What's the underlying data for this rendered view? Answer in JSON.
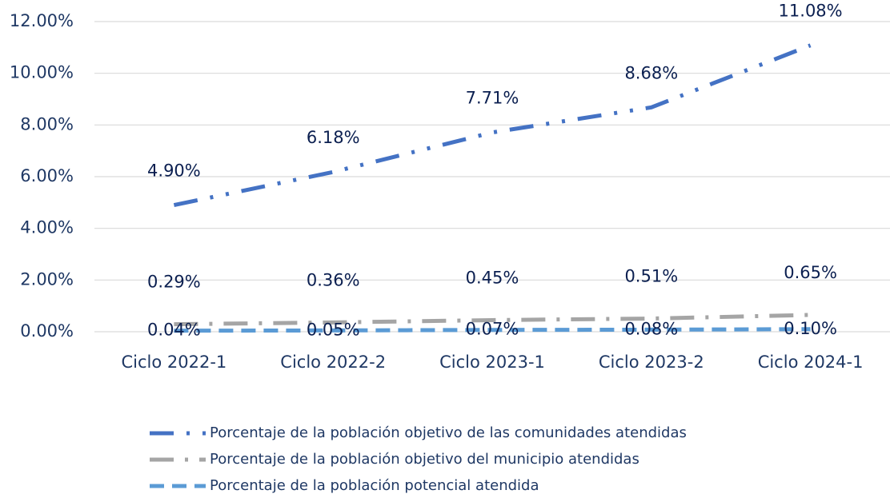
{
  "chart_data": {
    "type": "line",
    "categories": [
      "Ciclo 2022-1",
      "Ciclo 2022-2",
      "Ciclo 2023-1",
      "Ciclo 2023-2",
      "Ciclo 2024-1"
    ],
    "series": [
      {
        "name": "Porcentaje de la población objetivo de las comunidades atendidas",
        "color": "#4472c4",
        "dash": "dash-dot-dot",
        "values": [
          4.9,
          6.18,
          7.71,
          8.68,
          11.08
        ],
        "value_labels": [
          "4.90%",
          "6.18%",
          "7.71%",
          "8.68%",
          "11.08%"
        ]
      },
      {
        "name": "Porcentaje de la población objetivo del municipio atendidas",
        "color": "#a5a5a5",
        "dash": "long-dash-dot",
        "values": [
          0.29,
          0.36,
          0.45,
          0.51,
          0.65
        ],
        "value_labels": [
          "0.29%",
          "0.36%",
          "0.45%",
          "0.51%",
          "0.65%"
        ]
      },
      {
        "name": "Porcentaje de la población potencial atendida",
        "color": "#5b9bd5",
        "dash": "dash",
        "values": [
          0.04,
          0.05,
          0.07,
          0.08,
          0.1
        ],
        "value_labels": [
          "0.04%",
          "0.05%",
          "0.07%",
          "0.08%",
          "0.10%"
        ]
      }
    ],
    "ylim": [
      0,
      12
    ],
    "yticks": [
      {
        "value": 0,
        "label": "0.00%"
      },
      {
        "value": 2,
        "label": "2.00%"
      },
      {
        "value": 4,
        "label": "4.00%"
      },
      {
        "value": 6,
        "label": "6.00%"
      },
      {
        "value": 8,
        "label": "8.00%"
      },
      {
        "value": 10,
        "label": "10.00%"
      },
      {
        "value": 12,
        "label": "12.00%"
      }
    ],
    "grid": true,
    "legend": "bottom"
  }
}
